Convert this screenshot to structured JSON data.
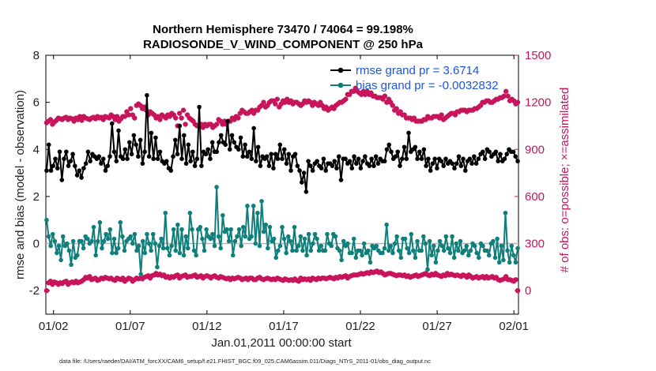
{
  "chart_data": {
    "type": "line",
    "title": "Northern Hemisphere 73470 / 74064 = 99.198%",
    "subtitle": "RADIOSONDE_V_WIND_COMPONENT @ 250 hPa",
    "xlabel": "Jan.01,2011 00:00:00 start",
    "ylabel": "rmse and bias (model - observation)",
    "y2label": "# of obs: o=possible; ×=assimilated",
    "xticks": [
      "01/02",
      "01/07",
      "01/12",
      "01/17",
      "01/22",
      "01/27",
      "02/01"
    ],
    "yticks": [
      "-2",
      "0",
      "2",
      "4",
      "6",
      "8"
    ],
    "y2ticks": [
      "0",
      "300",
      "600",
      "900",
      "1200",
      "1500"
    ],
    "ylim": [
      -3,
      8
    ],
    "y2lim": [
      -150,
      1500
    ],
    "xlim_days": [
      0.5,
      31.3
    ],
    "footnote": "data file: /Users/raeder/DAI/ATM_forcXX/CAM6_setup/f.e21.FHIST_BGC.f09_025.CAM6assim.011/Diags_NTrS_2011-01/obs_diag_output.nc",
    "legend": [
      {
        "label": "rmse grand pr = 3.6714",
        "color": "#000000"
      },
      {
        "label": "bias grand pr = -0.0032832",
        "color": "#0e7f7a"
      }
    ],
    "colors": {
      "rmse": "#000000",
      "bias": "#0e7f7a",
      "obs": "#c8145a",
      "legend_text": "#1a55e8",
      "zero_line": "#b4b4b4"
    },
    "series": [
      {
        "name": "rmse",
        "axis": "left",
        "values": [
          3.1,
          4.2,
          3.1,
          3.3,
          3.6,
          3.2,
          3.9,
          2.7,
          3.6,
          3.9,
          3.3,
          3.5,
          3.8,
          3.3,
          2.9,
          3.1,
          2.8,
          3.2,
          3.4,
          3.9,
          3.5,
          3.8,
          3.7,
          3.6,
          3.7,
          3.4,
          3.6,
          3.1,
          3.3,
          3.7,
          5.1,
          3.9,
          3.5,
          4.8,
          3.7,
          3.6,
          4.0,
          3.6,
          4.3,
          3.8,
          4.6,
          4.2,
          3.7,
          4.4,
          3.4,
          3.9,
          6.3,
          3.7,
          4.7,
          3.6,
          4.5,
          3.6,
          3.9,
          3.5,
          3.4,
          3.5,
          3.2,
          3.1,
          3.7,
          4.4,
          3.8,
          5.0,
          3.6,
          4.6,
          3.4,
          4.2,
          3.5,
          3.9,
          3.3,
          3.6,
          5.8,
          3.3,
          3.9,
          3.8,
          4.0,
          3.6,
          4.3,
          3.9,
          3.9,
          4.3,
          4.6,
          4.3,
          4.2,
          5.2,
          4.0,
          4.6,
          4.3,
          4.1,
          4.0,
          4.5,
          3.7,
          4.2,
          3.7,
          3.9,
          3.6,
          4.9,
          3.5,
          4.1,
          3.3,
          3.7,
          3.6,
          3.7,
          3.3,
          3.8,
          3.2,
          3.8,
          3.6,
          4.2,
          3.6,
          4.0,
          3.4,
          3.8,
          3.1,
          3.7,
          3.8,
          3.3,
          3.1,
          2.6,
          3.0,
          2.2,
          3.5,
          3.3,
          3.1,
          3.4,
          3.5,
          3.3,
          3.2,
          3.6,
          3.1,
          3.4,
          3.4,
          3.3,
          3.5,
          3.2,
          3.7,
          2.7,
          3.6,
          3.6,
          3.4,
          3.5,
          3.2,
          3.7,
          3.4,
          3.6,
          3.2,
          3.5,
          3.7,
          3.4,
          3.3,
          3.6,
          3.3,
          3.7,
          3.4,
          3.6,
          3.5,
          3.5,
          4.0,
          4.2,
          3.9,
          3.6,
          3.7,
          3.9,
          3.3,
          3.6,
          4.1,
          3.6,
          4.7,
          3.9,
          4.0,
          4.1,
          3.6,
          3.9,
          3.6,
          4.0,
          3.3,
          3.6,
          3.1,
          3.4,
          3.6,
          3.2,
          3.6,
          3.5,
          3.3,
          3.6,
          3.4,
          3.5,
          3.4,
          3.2,
          3.4,
          3.7,
          3.3,
          3.6,
          3.1,
          3.5,
          3.6,
          3.4,
          3.7,
          3.4,
          3.6,
          3.8,
          3.9,
          3.6,
          4.0,
          3.9,
          3.7,
          3.8,
          3.9,
          3.5,
          3.8,
          3.5,
          3.6,
          3.8,
          4.0,
          3.9,
          3.9,
          3.7,
          3.5
        ]
      },
      {
        "name": "bias",
        "axis": "left",
        "values": [
          1.0,
          0.3,
          -0.1,
          0.4,
          0.1,
          -0.4,
          -0.1,
          -0.7,
          0.3,
          -0.1,
          0.0,
          -0.3,
          -0.9,
          0.1,
          -0.6,
          -0.5,
          0.1,
          0.1,
          -0.2,
          0.3,
          0.2,
          0.0,
          0.1,
          0.7,
          -0.5,
          0.1,
          0.9,
          -0.2,
          0.1,
          0.4,
          0.2,
          0.6,
          -0.4,
          0.2,
          -0.4,
          -0.2,
          0.9,
          0.3,
          -0.3,
          0.1,
          0.2,
          0.3,
          0.0,
          0.4,
          -0.3,
          -0.1,
          -1.3,
          0.1,
          -0.4,
          0.4,
          0.0,
          -0.3,
          0.4,
          0.0,
          -1.0,
          -0.1,
          0.2,
          -0.2,
          1.3,
          -0.2,
          -0.5,
          -0.1,
          0.6,
          -0.3,
          0.8,
          -0.4,
          0.6,
          -0.5,
          0.3,
          -0.2,
          1.3,
          0.6,
          -0.3,
          -0.5,
          0.6,
          0.7,
          0.2,
          -0.3,
          0.6,
          0.3,
          0.2,
          0.4,
          -0.1,
          2.4,
          0.3,
          -0.2,
          1.2,
          0.5,
          0.6,
          0.1,
          0.6,
          -0.5,
          0.1,
          0.3,
          0.6,
          -0.1,
          0.7,
          0.3,
          1.6,
          0.2,
          0.3,
          1.6,
          0.0,
          1.3,
          -0.1,
          1.8,
          0.5,
          0.8,
          -0.2,
          0.7,
          0.1,
          0.2,
          -0.6,
          -0.3,
          -0.1,
          0.7,
          0.2,
          -0.4,
          0.3,
          0.1,
          -0.3,
          0.7,
          -0.3,
          -0.1,
          0.3,
          -0.3,
          0.2,
          -0.5,
          0.4,
          -0.3,
          0.0,
          0.4,
          0.2,
          -0.3,
          -0.1,
          -0.3,
          -0.3,
          0.4,
          0.0,
          -0.1,
          0.4,
          0.3,
          -0.2,
          -0.3,
          -0.7,
          0.1,
          -0.1,
          0.0,
          -0.4,
          -0.4,
          0.2,
          -0.6,
          -0.3,
          -0.3,
          -0.5,
          0.0,
          -0.4,
          -0.3,
          -0.8,
          -0.1,
          -0.2,
          -0.1,
          -0.3,
          -0.4,
          -0.4,
          -0.2,
          0.8,
          -0.3,
          -0.1,
          -0.4,
          0.0,
          0.3,
          -0.3,
          -0.6,
          0.2,
          0.2,
          -0.2,
          -0.4,
          0.4,
          -0.3,
          -0.6,
          0.1,
          -0.3,
          -0.3,
          0.3,
          0.0,
          -1.1,
          0.1,
          -0.5,
          -0.1,
          -0.8,
          -0.3,
          0.1,
          -0.1,
          -0.3,
          0.3,
          -0.2,
          -0.4,
          0.3,
          -0.6,
          0.0,
          -0.3,
          0.1,
          -0.4,
          -0.3,
          -0.1,
          -0.5,
          -0.3,
          0.0,
          -0.1,
          -0.4,
          -0.6,
          0.0,
          -0.1,
          -0.3,
          -0.3,
          -0.5,
          0.0,
          0.1,
          -0.6,
          0.2,
          -0.8,
          -0.1,
          -0.7,
          1.3,
          -0.3,
          -0.8,
          -0.1,
          -0.5,
          -0.8,
          -0.2
        ]
      },
      {
        "name": "obs_possible",
        "axis": "right",
        "values": [
          1070,
          1080,
          1090,
          1060,
          1075,
          1085,
          1100,
          1095,
          1090,
          1100,
          1105,
          1090,
          1100,
          1095,
          1080,
          1100,
          1090,
          1110,
          1085,
          1110,
          1100,
          1095,
          1090,
          1100,
          1105,
          1095,
          1110,
          1100,
          1105,
          1090,
          1110,
          1105,
          1100,
          1120,
          1110,
          1090,
          1110,
          1080,
          1095,
          1110,
          1110,
          1140,
          1120,
          1160,
          1120,
          1100,
          1180,
          1190,
          1180,
          1160,
          1170,
          1150,
          1120,
          1140,
          1130,
          1120,
          1100,
          1110,
          1090,
          1120,
          1110,
          1100,
          1120,
          1110,
          1130,
          1120,
          1100,
          1050,
          1130,
          1100,
          1150,
          1060,
          1120,
          1100,
          1090,
          1080,
          1060,
          1050,
          1050,
          1060,
          1040,
          1060,
          1050,
          1060,
          1060,
          1040,
          1050,
          1060,
          1090,
          1080,
          1060,
          1080,
          1060,
          1080,
          1080,
          1100,
          1090,
          1110,
          1100,
          1130,
          1150,
          1140,
          1130,
          1130,
          1140,
          1150,
          1130,
          1150,
          1150,
          1170,
          1180,
          1200,
          1170,
          1180,
          1200,
          1210,
          1210,
          1190,
          1220,
          1170,
          1190,
          1210,
          1200,
          1220,
          1200,
          1210,
          1190,
          1200,
          1200,
          1190,
          1180,
          1190,
          1210,
          1200,
          1210,
          1200,
          1180,
          1200,
          1190,
          1180,
          1200,
          1180,
          1160,
          1170,
          1150,
          1160,
          1170,
          1160,
          1180,
          1190,
          1200,
          1200,
          1210,
          1220,
          1250,
          1250,
          1270,
          1270,
          1290,
          1270,
          1260,
          1250,
          1270,
          1250,
          1270,
          1250,
          1260,
          1240,
          1240,
          1230,
          1230,
          1230,
          1220,
          1240,
          1200,
          1220,
          1200,
          1180,
          1150,
          1160,
          1130,
          1140,
          1120,
          1120,
          1100,
          1100,
          1100,
          1090,
          1100,
          1080,
          1080,
          1080,
          1080,
          1090,
          1090,
          1110,
          1100,
          1100,
          1110,
          1110,
          1110,
          1100,
          1120,
          1090,
          1100,
          1110,
          1120,
          1130,
          1130,
          1120,
          1140,
          1140,
          1150,
          1150,
          1150,
          1140,
          1150,
          1150,
          1150,
          1160,
          1160,
          1170,
          1180,
          1200,
          1200,
          1210,
          1210,
          1200,
          1200,
          1210,
          1220,
          1220,
          1230,
          1230,
          1240,
          1270,
          1240,
          1210,
          1220,
          1210,
          1190,
          1200
        ]
      },
      {
        "name": "obs_assimilated",
        "axis": "right",
        "values": [
          0,
          50,
          60,
          40,
          55,
          50,
          40,
          50,
          45,
          55,
          60,
          40,
          50,
          55,
          50,
          60,
          50,
          55,
          60,
          70,
          85,
          80,
          90,
          70,
          75,
          80,
          65,
          70,
          80,
          75,
          85,
          80,
          75,
          80,
          70,
          65,
          80,
          75,
          70,
          80,
          60,
          70,
          80,
          75,
          60,
          70,
          80,
          75,
          80,
          75,
          85,
          90,
          95,
          80,
          95,
          100,
          110,
          100,
          105,
          95,
          100,
          85,
          90,
          80,
          90,
          85,
          95,
          100,
          80,
          90,
          95,
          100,
          85,
          90,
          90,
          95,
          100,
          85,
          90,
          95,
          80,
          90,
          95,
          90,
          80,
          90,
          95,
          85,
          80,
          90,
          85,
          80,
          75,
          80,
          70,
          80,
          75,
          80,
          85,
          80,
          70,
          75,
          80,
          70,
          80,
          80,
          70,
          70,
          80,
          85,
          75,
          70,
          75,
          80,
          75,
          70,
          75,
          70,
          80,
          75,
          70,
          65,
          75,
          70,
          65,
          70,
          65,
          75,
          65,
          60,
          80,
          70,
          75,
          70,
          75,
          65,
          80,
          75,
          70,
          80,
          75,
          80,
          80,
          75,
          80,
          85,
          80,
          75,
          85,
          80,
          90,
          85,
          90,
          95,
          80,
          90,
          95,
          100,
          100,
          100,
          105,
          110,
          105,
          110,
          115,
          110,
          120,
          115,
          120,
          125,
          115,
          120,
          110,
          100,
          105,
          110,
          110,
          105,
          100,
          95,
          100,
          100,
          95,
          100,
          90,
          95,
          85,
          90,
          95,
          100,
          90,
          95,
          100,
          105,
          110,
          100,
          95,
          105,
          100,
          110,
          100,
          95,
          90,
          100,
          95,
          110,
          100,
          105,
          100,
          95,
          100,
          95,
          90,
          100,
          95,
          85,
          100,
          90,
          80,
          85,
          90,
          80,
          85,
          90,
          80,
          90,
          80,
          85,
          90,
          80,
          85,
          70,
          65,
          70,
          75,
          90,
          70,
          70,
          65,
          60,
          70,
          0
        ]
      }
    ]
  }
}
